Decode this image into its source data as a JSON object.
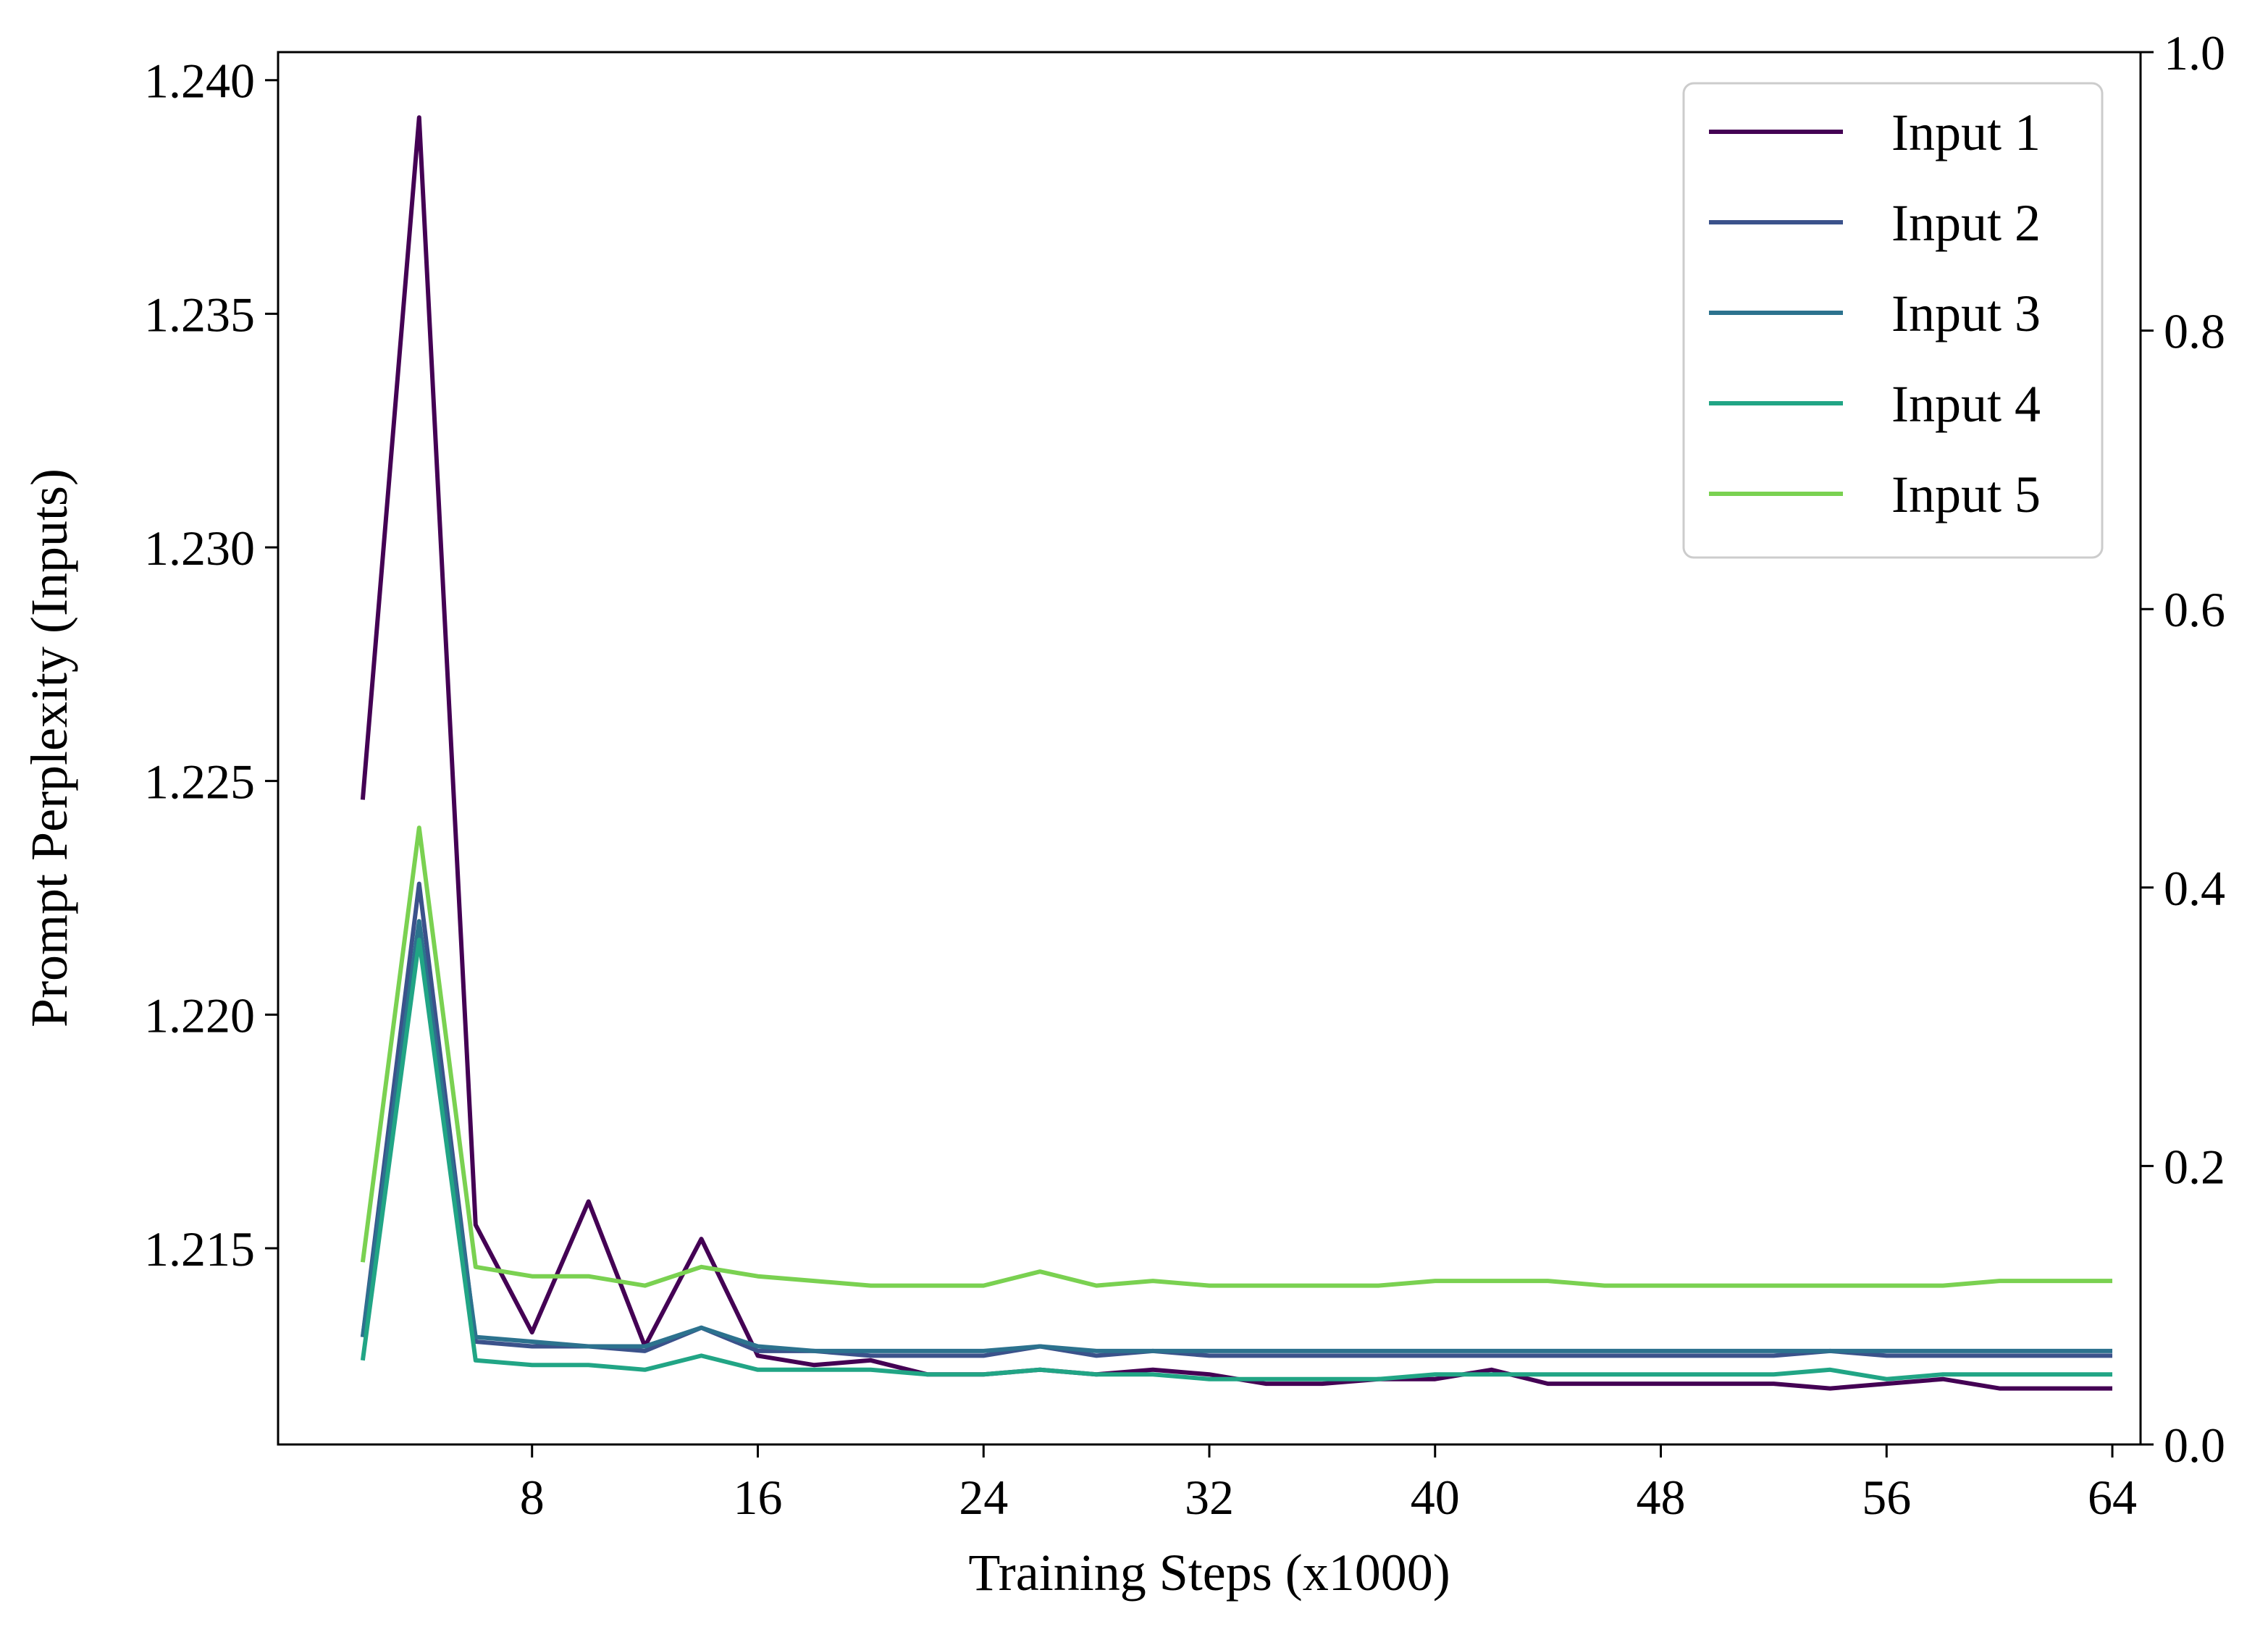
{
  "chart_data": {
    "type": "line",
    "title": "",
    "xlabel": "Training Steps (x1000)",
    "ylabel": "Prompt Perplexity (Inputs)",
    "xlim": [
      -1,
      65
    ],
    "ylim": [
      1.2108,
      1.2406
    ],
    "y2lim": [
      0,
      1
    ],
    "xticks": [
      8,
      16,
      24,
      32,
      40,
      48,
      56,
      64
    ],
    "xtick_labels": [
      "8",
      "16",
      "24",
      "32",
      "40",
      "48",
      "56",
      "64"
    ],
    "yticks": [
      1.215,
      1.22,
      1.225,
      1.23,
      1.235,
      1.24
    ],
    "ytick_labels": [
      "1.215",
      "1.220",
      "1.225",
      "1.230",
      "1.235",
      "1.240"
    ],
    "y2ticks": [
      0.0,
      0.2,
      0.4,
      0.6,
      0.8,
      1.0
    ],
    "y2tick_labels": [
      "0.0",
      "0.2",
      "0.4",
      "0.6",
      "0.8",
      "1.0"
    ],
    "grid": false,
    "legend_position": "top-right",
    "x": [
      2,
      4,
      6,
      8,
      10,
      12,
      14,
      16,
      18,
      20,
      22,
      24,
      26,
      28,
      30,
      32,
      34,
      36,
      38,
      40,
      42,
      44,
      46,
      48,
      50,
      52,
      54,
      56,
      58,
      60,
      62,
      64
    ],
    "series": [
      {
        "name": "Input 1",
        "color": "#440154",
        "values": [
          1.2246,
          1.2392,
          1.2155,
          1.2132,
          1.216,
          1.2129,
          1.2152,
          1.2127,
          1.2125,
          1.2126,
          1.2123,
          1.2123,
          1.2124,
          1.2123,
          1.2124,
          1.2123,
          1.2121,
          1.2121,
          1.2122,
          1.2122,
          1.2124,
          1.2121,
          1.2121,
          1.2121,
          1.2121,
          1.2121,
          1.212,
          1.2121,
          1.2122,
          1.212,
          1.212,
          1.212
        ]
      },
      {
        "name": "Input 2",
        "color": "#3b528b",
        "values": [
          1.2131,
          1.2228,
          1.213,
          1.2129,
          1.2129,
          1.2128,
          1.2133,
          1.2128,
          1.2128,
          1.2127,
          1.2127,
          1.2127,
          1.2129,
          1.2127,
          1.2128,
          1.2127,
          1.2127,
          1.2127,
          1.2127,
          1.2127,
          1.2127,
          1.2127,
          1.2127,
          1.2127,
          1.2127,
          1.2127,
          1.2128,
          1.2127,
          1.2127,
          1.2127,
          1.2127,
          1.2127
        ]
      },
      {
        "name": "Input 3",
        "color": "#2c728e",
        "values": [
          1.2131,
          1.222,
          1.2131,
          1.213,
          1.2129,
          1.2129,
          1.2133,
          1.2129,
          1.2128,
          1.2128,
          1.2128,
          1.2128,
          1.2129,
          1.2128,
          1.2128,
          1.2128,
          1.2128,
          1.2128,
          1.2128,
          1.2128,
          1.2128,
          1.2128,
          1.2128,
          1.2128,
          1.2128,
          1.2128,
          1.2128,
          1.2128,
          1.2128,
          1.2128,
          1.2128,
          1.2128
        ]
      },
      {
        "name": "Input 4",
        "color": "#21a585",
        "values": [
          1.2126,
          1.2216,
          1.2126,
          1.2125,
          1.2125,
          1.2124,
          1.2127,
          1.2124,
          1.2124,
          1.2124,
          1.2123,
          1.2123,
          1.2124,
          1.2123,
          1.2123,
          1.2122,
          1.2122,
          1.2122,
          1.2122,
          1.2123,
          1.2123,
          1.2123,
          1.2123,
          1.2123,
          1.2123,
          1.2123,
          1.2124,
          1.2122,
          1.2123,
          1.2123,
          1.2123,
          1.2123
        ]
      },
      {
        "name": "Input 5",
        "color": "#7ad151",
        "values": [
          1.2147,
          1.224,
          1.2146,
          1.2144,
          1.2144,
          1.2142,
          1.2146,
          1.2144,
          1.2143,
          1.2142,
          1.2142,
          1.2142,
          1.2145,
          1.2142,
          1.2143,
          1.2142,
          1.2142,
          1.2142,
          1.2142,
          1.2143,
          1.2143,
          1.2143,
          1.2142,
          1.2142,
          1.2142,
          1.2142,
          1.2142,
          1.2142,
          1.2142,
          1.2143,
          1.2143,
          1.2143
        ]
      }
    ]
  }
}
